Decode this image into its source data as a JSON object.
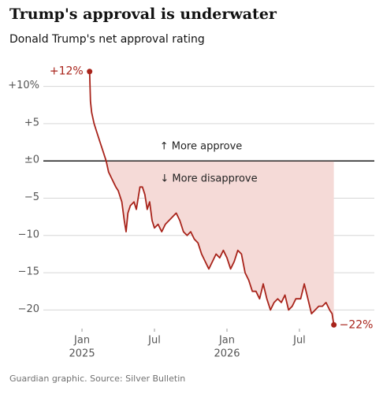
{
  "chart_data": {
    "type": "line",
    "title": "Trump's approval is underwater",
    "subtitle": "Donald Trump's net approval rating",
    "source": "Guardian graphic. Source: Silver Bulletin",
    "annotations": {
      "above": "↑ More approve",
      "below": "↓ More disapprove"
    },
    "color": "#a8231a",
    "fill_color": "#f5dad7",
    "x": [
      0.63,
      0.7,
      0.8,
      1.0,
      1.2,
      1.5,
      1.7,
      2.0,
      2.2,
      2.5,
      2.8,
      3.0,
      3.3,
      3.5,
      3.65,
      3.8,
      4.0,
      4.3,
      4.5,
      4.8,
      5.0,
      5.2,
      5.4,
      5.6,
      5.8,
      6.0,
      6.3,
      6.6,
      6.9,
      7.2,
      7.5,
      7.8,
      8.1,
      8.4,
      8.7,
      9.0,
      9.3,
      9.6,
      9.9,
      10.2,
      10.5,
      10.8,
      11.1,
      11.4,
      11.7,
      12.0,
      12.3,
      12.6,
      12.9,
      13.2,
      13.5,
      13.8,
      14.1,
      14.4,
      14.7,
      15.0,
      15.3,
      15.6,
      15.9,
      16.2,
      16.5,
      16.8,
      17.1,
      17.4,
      17.7,
      18.1,
      18.4,
      18.7,
      19.0,
      19.3,
      19.6,
      19.9,
      20.2,
      20.5,
      20.7,
      20.85
    ],
    "values": [
      12,
      8,
      6.5,
      5,
      4,
      2.5,
      1.5,
      0,
      -1.5,
      -2.5,
      -3.5,
      -4,
      -5.5,
      -8,
      -9.5,
      -7,
      -6,
      -5.5,
      -6.5,
      -3.5,
      -3.5,
      -4.5,
      -6.5,
      -5.5,
      -8,
      -9,
      -8.5,
      -9.5,
      -8.5,
      -8,
      -7.5,
      -7,
      -8,
      -9.5,
      -10,
      -9.5,
      -10.5,
      -11,
      -12.5,
      -13.5,
      -14.5,
      -13.5,
      -12.5,
      -13,
      -12,
      -13,
      -14.5,
      -13.5,
      -12,
      -12.5,
      -15,
      -16,
      -17.5,
      -17.5,
      -18.5,
      -16.5,
      -18.5,
      -20,
      -19,
      -18.5,
      -19,
      -18,
      -20,
      -19.5,
      -18.5,
      -18.5,
      -16.5,
      -18.5,
      -20.5,
      -20,
      -19.5,
      -19.5,
      -19,
      -20,
      -20.5,
      -22
    ],
    "value_labels": [
      "+12%",
      null,
      null,
      null,
      null,
      null,
      null,
      null,
      null,
      null,
      null,
      null,
      null,
      null,
      null,
      null,
      null,
      null,
      null,
      null,
      null,
      null,
      null,
      null,
      null,
      null,
      null,
      null,
      null,
      null,
      null,
      null,
      null,
      null,
      null,
      null,
      null,
      null,
      null,
      null,
      null,
      null,
      null,
      null,
      null,
      null,
      null,
      null,
      null,
      null,
      null,
      null,
      null,
      null,
      null,
      null,
      null,
      null,
      null,
      null,
      null,
      null,
      null,
      null,
      null,
      null,
      null,
      null,
      null,
      null,
      null,
      null,
      null,
      null,
      null,
      "−22%"
    ],
    "xlim": [
      -3.2,
      24.2
    ],
    "xticks": [
      {
        "value": 0,
        "label": "Jan",
        "year": "2025"
      },
      {
        "value": 6,
        "label": "Jul"
      },
      {
        "value": 12,
        "label": "Jan",
        "year": "2026"
      },
      {
        "value": 18,
        "label": "Jul"
      }
    ],
    "ylim": [
      -22.5,
      12.5
    ],
    "yticks": [
      {
        "value": 10,
        "label": "+10%"
      },
      {
        "value": 5,
        "label": "+5"
      },
      {
        "value": 0,
        "label": "±0"
      },
      {
        "value": -5,
        "label": "−5"
      },
      {
        "value": -10,
        "label": "−10"
      },
      {
        "value": -15,
        "label": "−15"
      },
      {
        "value": -20,
        "label": "−20"
      }
    ],
    "grid": true
  }
}
